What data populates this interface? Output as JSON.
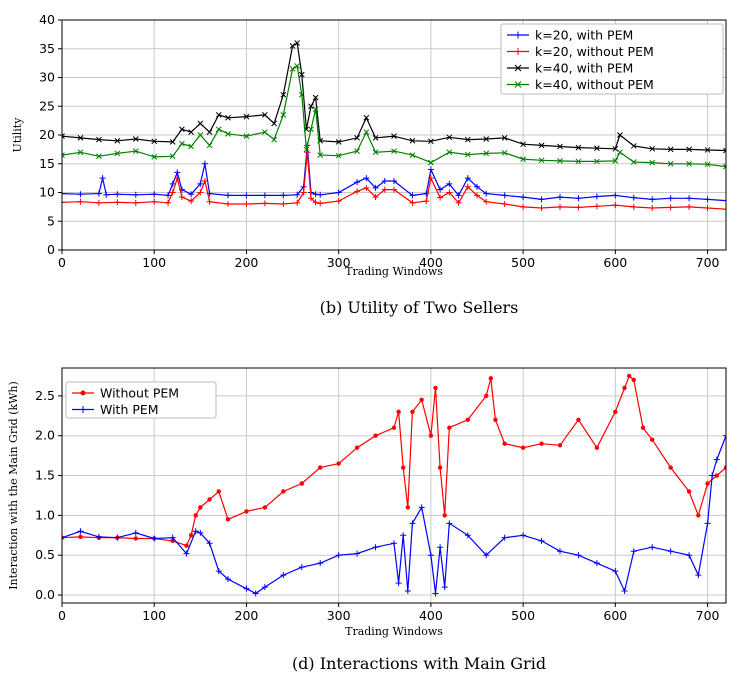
{
  "chart_data": [
    {
      "type": "line",
      "caption": "(b) Utility of Two Sellers",
      "xlabel": "Trading Windows",
      "ylabel": "Utility",
      "xlim": [
        0,
        720
      ],
      "ylim": [
        0,
        40
      ],
      "xticks": [
        0,
        100,
        200,
        300,
        400,
        500,
        600,
        700
      ],
      "yticks": [
        0,
        5,
        10,
        15,
        20,
        25,
        30,
        35,
        40
      ],
      "grid": true,
      "legend_position": "top-right",
      "series": [
        {
          "name": "k=20, with PEM",
          "color": "#0000ff",
          "marker": "+",
          "x": [
            0,
            20,
            40,
            44,
            48,
            60,
            80,
            100,
            115,
            120,
            125,
            130,
            140,
            150,
            155,
            160,
            180,
            200,
            220,
            240,
            255,
            262,
            266,
            270,
            275,
            280,
            300,
            320,
            330,
            340,
            350,
            360,
            380,
            395,
            400,
            410,
            420,
            430,
            440,
            450,
            460,
            480,
            500,
            520,
            540,
            560,
            580,
            600,
            620,
            640,
            660,
            680,
            700,
            720
          ],
          "y": [
            9.8,
            9.7,
            9.8,
            12.5,
            9.6,
            9.7,
            9.6,
            9.7,
            9.5,
            11.5,
            13.5,
            10.5,
            9.7,
            11.5,
            15,
            9.8,
            9.5,
            9.5,
            9.5,
            9.5,
            9.6,
            11,
            18.2,
            10,
            9.7,
            9.6,
            10,
            11.8,
            12.5,
            10.8,
            12,
            12,
            9.5,
            9.8,
            14,
            10.5,
            11.5,
            9.5,
            12.5,
            11,
            9.8,
            9.5,
            9.2,
            8.8,
            9.2,
            9,
            9.3,
            9.5,
            9.1,
            8.8,
            9,
            9,
            8.8,
            8.6
          ]
        },
        {
          "name": "k=20, without PEM",
          "color": "#ff0000",
          "marker": "+",
          "x": [
            0,
            20,
            40,
            60,
            80,
            100,
            115,
            120,
            125,
            130,
            140,
            150,
            155,
            160,
            180,
            200,
            220,
            240,
            255,
            262,
            266,
            270,
            275,
            280,
            300,
            320,
            330,
            340,
            350,
            360,
            380,
            395,
            400,
            410,
            420,
            430,
            440,
            450,
            460,
            480,
            500,
            520,
            540,
            560,
            580,
            600,
            620,
            640,
            660,
            680,
            700,
            720
          ],
          "y": [
            8.3,
            8.4,
            8.2,
            8.3,
            8.2,
            8.4,
            8.2,
            10,
            12.5,
            9.2,
            8.5,
            10,
            12,
            8.4,
            8,
            8,
            8.1,
            8,
            8.2,
            10,
            17,
            9,
            8.3,
            8.1,
            8.5,
            10.2,
            10.8,
            9.2,
            10.5,
            10.5,
            8.2,
            8.5,
            12.5,
            9.1,
            10,
            8.2,
            11,
            9.5,
            8.4,
            8,
            7.5,
            7.3,
            7.5,
            7.4,
            7.6,
            7.8,
            7.5,
            7.3,
            7.4,
            7.5,
            7.3,
            7.1
          ]
        },
        {
          "name": "k=40, with PEM",
          "color": "#000000",
          "marker": "x",
          "x": [
            0,
            20,
            40,
            60,
            80,
            100,
            120,
            130,
            140,
            150,
            160,
            170,
            180,
            200,
            220,
            230,
            240,
            250,
            255,
            260,
            265,
            270,
            275,
            280,
            300,
            320,
            330,
            340,
            360,
            380,
            400,
            420,
            440,
            460,
            480,
            500,
            520,
            540,
            560,
            580,
            600,
            605,
            620,
            640,
            660,
            680,
            700,
            720
          ],
          "y": [
            19.8,
            19.5,
            19.2,
            19,
            19.3,
            18.9,
            18.8,
            21,
            20.5,
            22,
            20.5,
            23.5,
            23,
            23.2,
            23.5,
            22,
            27,
            35.5,
            36,
            30.5,
            21,
            25,
            26.5,
            19,
            18.8,
            19.5,
            23,
            19.5,
            19.8,
            19,
            18.9,
            19.6,
            19.2,
            19.3,
            19.5,
            18.4,
            18.2,
            18,
            17.8,
            17.7,
            17.6,
            20,
            18.1,
            17.6,
            17.5,
            17.5,
            17.4,
            17.3
          ]
        },
        {
          "name": "k=40, without PEM",
          "color": "#008000",
          "marker": "x",
          "x": [
            0,
            20,
            40,
            60,
            80,
            100,
            120,
            130,
            140,
            150,
            160,
            170,
            180,
            200,
            220,
            230,
            240,
            250,
            255,
            260,
            265,
            270,
            275,
            280,
            300,
            320,
            330,
            340,
            360,
            380,
            400,
            420,
            440,
            460,
            480,
            500,
            520,
            540,
            560,
            580,
            600,
            605,
            620,
            640,
            660,
            680,
            700,
            720
          ],
          "y": [
            16.5,
            17,
            16.3,
            16.8,
            17.2,
            16.2,
            16.3,
            18.5,
            18,
            20,
            18.2,
            21,
            20.2,
            19.8,
            20.5,
            19.2,
            23.5,
            31.5,
            32,
            27,
            17.5,
            21,
            24.5,
            16.5,
            16.4,
            17.2,
            20.5,
            17,
            17.2,
            16.5,
            15.2,
            17,
            16.6,
            16.8,
            16.9,
            15.8,
            15.6,
            15.5,
            15.4,
            15.4,
            15.5,
            17,
            15.3,
            15.2,
            15,
            15,
            14.9,
            14.5
          ]
        }
      ]
    },
    {
      "type": "line",
      "caption": "(d) Interactions with Main Grid",
      "xlabel": "Trading Windows",
      "ylabel": "Interaction with the Main Grid (kWh)",
      "xlim": [
        0,
        720
      ],
      "ylim": [
        -0.1,
        2.85
      ],
      "xticks": [
        0,
        100,
        200,
        300,
        400,
        500,
        600,
        700
      ],
      "yticks": [
        0.0,
        0.5,
        1.0,
        1.5,
        2.0,
        2.5
      ],
      "grid": true,
      "legend_position": "top-left",
      "series": [
        {
          "name": "Without PEM",
          "color": "#ff0000",
          "marker": "o",
          "x": [
            0,
            20,
            40,
            60,
            80,
            100,
            120,
            135,
            140,
            145,
            150,
            160,
            170,
            180,
            200,
            220,
            240,
            260,
            280,
            300,
            320,
            340,
            360,
            365,
            370,
            375,
            380,
            390,
            400,
            405,
            410,
            415,
            420,
            440,
            460,
            465,
            470,
            480,
            500,
            520,
            540,
            560,
            580,
            600,
            610,
            615,
            620,
            630,
            640,
            660,
            680,
            690,
            700,
            710,
            720
          ],
          "y": [
            0.72,
            0.73,
            0.72,
            0.72,
            0.71,
            0.71,
            0.68,
            0.62,
            0.75,
            1.0,
            1.1,
            1.2,
            1.3,
            0.95,
            1.05,
            1.1,
            1.3,
            1.4,
            1.6,
            1.65,
            1.85,
            2.0,
            2.1,
            2.3,
            1.6,
            1.1,
            2.3,
            2.45,
            2.0,
            2.6,
            1.6,
            1.0,
            2.1,
            2.2,
            2.5,
            2.72,
            2.2,
            1.9,
            1.85,
            1.9,
            1.88,
            2.2,
            1.85,
            2.3,
            2.6,
            2.75,
            2.7,
            2.1,
            1.95,
            1.6,
            1.3,
            1.0,
            1.4,
            1.5,
            1.6
          ]
        },
        {
          "name": "With PEM",
          "color": "#0000ff",
          "marker": "+",
          "x": [
            0,
            20,
            40,
            60,
            80,
            100,
            120,
            135,
            145,
            150,
            160,
            170,
            180,
            200,
            210,
            220,
            240,
            260,
            280,
            300,
            320,
            340,
            360,
            365,
            370,
            375,
            380,
            390,
            400,
            405,
            410,
            415,
            420,
            440,
            460,
            480,
            500,
            520,
            540,
            560,
            580,
            600,
            610,
            620,
            640,
            660,
            680,
            690,
            700,
            705,
            710,
            720
          ],
          "y": [
            0.72,
            0.8,
            0.73,
            0.72,
            0.78,
            0.71,
            0.72,
            0.52,
            0.8,
            0.78,
            0.65,
            0.3,
            0.2,
            0.08,
            0.02,
            0.1,
            0.25,
            0.35,
            0.4,
            0.5,
            0.52,
            0.6,
            0.65,
            0.15,
            0.75,
            0.05,
            0.9,
            1.1,
            0.5,
            0.02,
            0.6,
            0.1,
            0.9,
            0.75,
            0.5,
            0.72,
            0.75,
            0.68,
            0.55,
            0.5,
            0.4,
            0.3,
            0.05,
            0.55,
            0.6,
            0.55,
            0.5,
            0.25,
            0.9,
            1.5,
            1.7,
            2.0
          ]
        }
      ]
    }
  ]
}
